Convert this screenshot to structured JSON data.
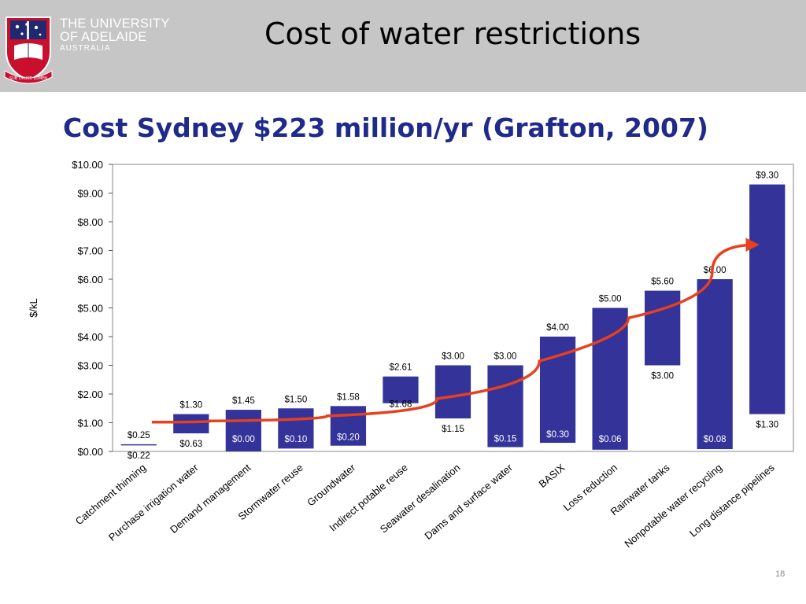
{
  "header": {
    "university_line1": "THE UNIVERSITY",
    "university_line2": "OF ADELAIDE",
    "university_line3": "AUSTRALIA",
    "motto": "SUB CRUCE LUMEN",
    "bg_color": "#c6c6c6",
    "crest_color": "#c8102e",
    "crest_blue": "#1f2a6e"
  },
  "slide": {
    "title": "Cost of water restrictions",
    "subtitle": "Cost Sydney $223 million/yr (Grafton, 2007)",
    "page_number": "18"
  },
  "chart_data": {
    "type": "bar",
    "subtype": "floating-range",
    "ylabel": "$/kL",
    "ylim": [
      0,
      10
    ],
    "yticks": [
      "$0.00",
      "$1.00",
      "$2.00",
      "$3.00",
      "$4.00",
      "$5.00",
      "$6.00",
      "$7.00",
      "$8.00",
      "$9.00",
      "$10.00"
    ],
    "categories": [
      "Catchment thinning",
      "Purchase irrigation water",
      "Demand management",
      "Stormwater reuse",
      "Groundwater",
      "Indirect potable reuse",
      "Seawater desalination",
      "Dams and surface water",
      "BASIX",
      "Loss reduction",
      "Rainwater tanks",
      "Nonpotable water recycling",
      "Long distance pipelines"
    ],
    "low": [
      0.22,
      0.63,
      0.0,
      0.1,
      0.2,
      1.68,
      1.15,
      0.15,
      0.3,
      0.06,
      3.0,
      0.08,
      1.3
    ],
    "high": [
      0.25,
      1.3,
      1.45,
      1.5,
      1.58,
      2.61,
      3.0,
      3.0,
      4.0,
      5.0,
      5.6,
      6.0,
      9.3
    ],
    "low_labels": [
      "$0.22",
      "$0.63",
      "$0.00",
      "$0.10",
      "$0.20",
      "$1.68",
      "$1.15",
      "$0.15",
      "$0.30",
      "$0.06",
      "$3.00",
      "$0.08",
      "$1.30"
    ],
    "high_labels": [
      "$0.25",
      "$1.30",
      "$1.45",
      "$1.50",
      "$1.58",
      "$2.61",
      "$3.00",
      "$3.00",
      "$4.00",
      "$5.00",
      "$5.60",
      "$6.00",
      "$9.30"
    ],
    "bar_color": "#33339a",
    "trend_color": "#e8401c",
    "trend_points": [
      [
        0.75,
        1.02
      ],
      [
        3.0,
        1.1
      ],
      [
        5.2,
        1.38
      ],
      [
        7.2,
        2.3
      ],
      [
        9.1,
        4.0
      ],
      [
        10.6,
        5.3
      ],
      [
        12.3,
        7.2
      ]
    ],
    "grid": false,
    "legend": "none"
  }
}
